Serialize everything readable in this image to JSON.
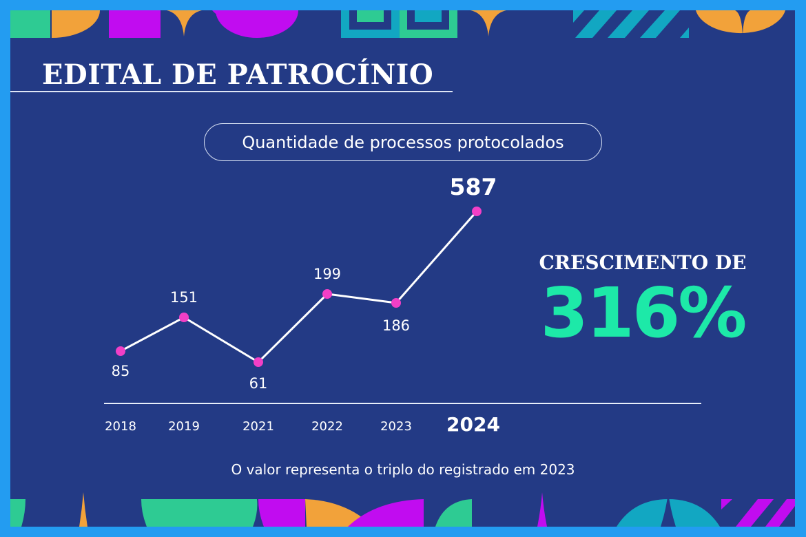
{
  "header": {
    "title": "EDITAL DE PATROCÍNIO"
  },
  "chart_pill": {
    "label": "Quantidade de processos protocolados"
  },
  "highlight": {
    "label": "CRESCIMENTO DE",
    "value": "316%"
  },
  "footnote": "O valor representa o triplo do registrado em 2023",
  "colors": {
    "outer_border": "#239cf1",
    "background": "#233a85",
    "line": "#ffffff",
    "marker": "#f23fc6",
    "accent_green": "#1de9a8",
    "deco_orange": "#f2a23a",
    "deco_purple": "#c10cf0",
    "deco_green": "#2ecb93",
    "deco_teal": "#12a7c2"
  },
  "chart_data": {
    "type": "line",
    "title": "Quantidade de processos protocolados",
    "xlabel": "",
    "ylabel": "",
    "categories": [
      "2018",
      "2019",
      "2021",
      "2022",
      "2023",
      "2024"
    ],
    "values": [
      85,
      151,
      61,
      199,
      186,
      587
    ],
    "labels": [
      "85",
      "151",
      "61",
      "199",
      "186",
      "587"
    ],
    "highlight_category": "2024",
    "annotations": [
      "CRESCIMENTO DE 316%",
      "O valor representa o triplo do registrado em 2023"
    ],
    "grid": false,
    "legend": null,
    "ylim": [
      0,
      620
    ]
  }
}
